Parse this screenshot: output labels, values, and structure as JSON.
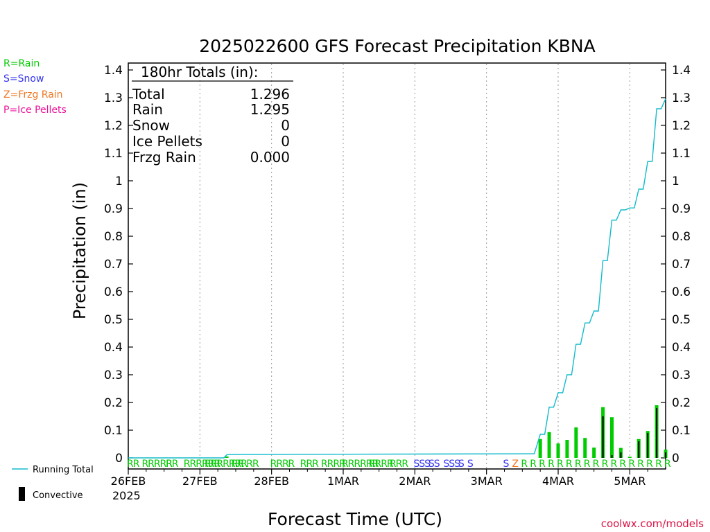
{
  "chart_data": {
    "type": "bar",
    "title": "2025022600 GFS Forecast Precipitation KBNA",
    "xlabel": "Forecast Time (UTC)",
    "ylabel": "Precipitation (in)",
    "credit": "coolwx.com/models",
    "ylim": [
      0,
      1.4
    ],
    "yticks": [
      "0",
      "0.1",
      "0.2",
      "0.3",
      "0.4",
      "0.5",
      "0.6",
      "0.7",
      "0.8",
      "0.9",
      "1",
      "1.1",
      "1.2",
      "1.3",
      "1.4"
    ],
    "x_range_hours": [
      0,
      180
    ],
    "x_ticks": [
      {
        "label": "26FEB",
        "hour": 0
      },
      {
        "label": "27FEB",
        "hour": 24
      },
      {
        "label": "28FEB",
        "hour": 48
      },
      {
        "label": "1MAR",
        "hour": 72
      },
      {
        "label": "2MAR",
        "hour": 96
      },
      {
        "label": "3MAR",
        "hour": 120
      },
      {
        "label": "4MAR",
        "hour": 144
      },
      {
        "label": "5MAR",
        "hour": 168
      }
    ],
    "x_year_label": "2025",
    "grid": "vertical dotted",
    "legend_types": [
      {
        "text": "R=Rain",
        "color": "#00cc00"
      },
      {
        "text": "S=Snow",
        "color": "#3333ee"
      },
      {
        "text": "Z=Frzg Rain",
        "color": "#ee7722"
      },
      {
        "text": "P=Ice Pellets",
        "color": "#ee1199"
      }
    ],
    "legend_running": "Running Total",
    "legend_convective": "Convective",
    "totals": {
      "header": "180hr Totals (in):",
      "rows": [
        {
          "label": "Total",
          "value": "1.296"
        },
        {
          "label": "Rain",
          "value": "1.295"
        },
        {
          "label": "Snow",
          "value": "0"
        },
        {
          "label": "Ice Pellets",
          "value": "0"
        },
        {
          "label": "Frzg Rain",
          "value": "0.000"
        }
      ]
    },
    "colors": {
      "running": "#11bbcc",
      "bar": "#00cc00",
      "convective": "#000000",
      "rain": "#00cc00",
      "snow": "#3333ee",
      "frzg": "#ee7722"
    },
    "bars": [
      {
        "hour": 33,
        "value": 0.005,
        "convective": 0
      },
      {
        "hour": 138,
        "value": 0.068,
        "convective": 0
      },
      {
        "hour": 141,
        "value": 0.093,
        "convective": 0
      },
      {
        "hour": 144,
        "value": 0.052,
        "convective": 0
      },
      {
        "hour": 147,
        "value": 0.065,
        "convective": 0
      },
      {
        "hour": 150,
        "value": 0.11,
        "convective": 0
      },
      {
        "hour": 153,
        "value": 0.072,
        "convective": 0
      },
      {
        "hour": 156,
        "value": 0.037,
        "convective": 0
      },
      {
        "hour": 159,
        "value": 0.183,
        "convective": 0.15
      },
      {
        "hour": 162,
        "value": 0.147,
        "convective": 0.01
      },
      {
        "hour": 165,
        "value": 0.036,
        "convective": 0.02
      },
      {
        "hour": 168,
        "value": 0.004,
        "convective": 0
      },
      {
        "hour": 171,
        "value": 0.068,
        "convective": 0.06
      },
      {
        "hour": 174,
        "value": 0.097,
        "convective": 0.09
      },
      {
        "hour": 177,
        "value": 0.19,
        "convective": 0.18
      },
      {
        "hour": 180,
        "value": 0.03,
        "convective": 0.02
      }
    ],
    "running_total": [
      {
        "hour": 0,
        "value": 0.0
      },
      {
        "hour": 32,
        "value": 0.0
      },
      {
        "hour": 33,
        "value": 0.011
      },
      {
        "hour": 34,
        "value": 0.012
      },
      {
        "hour": 136,
        "value": 0.015
      },
      {
        "hour": 138,
        "value": 0.085
      },
      {
        "hour": 139.5,
        "value": 0.085
      },
      {
        "hour": 141,
        "value": 0.183
      },
      {
        "hour": 142.5,
        "value": 0.183
      },
      {
        "hour": 144,
        "value": 0.235
      },
      {
        "hour": 145.5,
        "value": 0.235
      },
      {
        "hour": 147,
        "value": 0.3
      },
      {
        "hour": 148.5,
        "value": 0.3
      },
      {
        "hour": 150,
        "value": 0.41
      },
      {
        "hour": 151.5,
        "value": 0.41
      },
      {
        "hour": 153,
        "value": 0.487
      },
      {
        "hour": 154.5,
        "value": 0.487
      },
      {
        "hour": 156,
        "value": 0.53
      },
      {
        "hour": 157.5,
        "value": 0.53
      },
      {
        "hour": 159,
        "value": 0.712
      },
      {
        "hour": 160.5,
        "value": 0.712
      },
      {
        "hour": 162,
        "value": 0.858
      },
      {
        "hour": 163.5,
        "value": 0.858
      },
      {
        "hour": 165,
        "value": 0.895
      },
      {
        "hour": 166.5,
        "value": 0.895
      },
      {
        "hour": 168,
        "value": 0.902
      },
      {
        "hour": 169.5,
        "value": 0.902
      },
      {
        "hour": 171,
        "value": 0.97
      },
      {
        "hour": 172.5,
        "value": 0.97
      },
      {
        "hour": 174,
        "value": 1.07
      },
      {
        "hour": 175.5,
        "value": 1.07
      },
      {
        "hour": 177,
        "value": 1.26
      },
      {
        "hour": 178.5,
        "value": 1.26
      },
      {
        "hour": 180,
        "value": 1.296
      }
    ],
    "ptype_marks": [
      {
        "hour": 0,
        "text": "RR",
        "kind": "rain"
      },
      {
        "hour": 5,
        "text": "R",
        "kind": "rain"
      },
      {
        "hour": 7,
        "text": "RRRR",
        "kind": "rain"
      },
      {
        "hour": 13,
        "text": "RR",
        "kind": "rain"
      },
      {
        "hour": 19,
        "text": "RRRRRR",
        "kind": "rain"
      },
      {
        "hour": 26,
        "text": "RRRRRRR",
        "kind": "rain"
      },
      {
        "hour": 35,
        "text": "RR",
        "kind": "rain"
      },
      {
        "hour": 40,
        "text": "RR",
        "kind": "rain"
      },
      {
        "hour": 48,
        "text": "RRR",
        "kind": "rain"
      },
      {
        "hour": 54,
        "text": "R",
        "kind": "rain"
      },
      {
        "hour": 58,
        "text": "RRR",
        "kind": "rain"
      },
      {
        "hour": 65,
        "text": "RRRR",
        "kind": "rain"
      },
      {
        "hour": 72,
        "text": "RRRRRR",
        "kind": "rain"
      },
      {
        "hour": 81,
        "text": "RRRR",
        "kind": "rain"
      },
      {
        "hour": 88,
        "text": "RRR",
        "kind": "rain"
      },
      {
        "hour": 96,
        "text": "SSS",
        "kind": "snow"
      },
      {
        "hour": 101,
        "text": "SS",
        "kind": "snow"
      },
      {
        "hour": 106,
        "text": "SSS",
        "kind": "snow"
      },
      {
        "hour": 111,
        "text": "S",
        "kind": "snow"
      },
      {
        "hour": 114,
        "text": "S",
        "kind": "snow"
      },
      {
        "hour": 126,
        "text": "S",
        "kind": "snow"
      },
      {
        "hour": 129,
        "text": "Z",
        "kind": "frzg"
      },
      {
        "hour": 132,
        "text": "R",
        "kind": "rain"
      },
      {
        "hour": 135,
        "text": "R",
        "kind": "rain"
      },
      {
        "hour": 138,
        "text": "R",
        "kind": "rain"
      },
      {
        "hour": 141,
        "text": "R",
        "kind": "rain"
      },
      {
        "hour": 144,
        "text": "R",
        "kind": "rain"
      },
      {
        "hour": 147,
        "text": "R",
        "kind": "rain"
      },
      {
        "hour": 150,
        "text": "R",
        "kind": "rain"
      },
      {
        "hour": 153,
        "text": "R",
        "kind": "rain"
      },
      {
        "hour": 156,
        "text": "R",
        "kind": "rain"
      },
      {
        "hour": 159,
        "text": "R",
        "kind": "rain"
      },
      {
        "hour": 162,
        "text": "R",
        "kind": "rain"
      },
      {
        "hour": 165,
        "text": "R",
        "kind": "rain"
      },
      {
        "hour": 168,
        "text": "R",
        "kind": "rain"
      },
      {
        "hour": 171,
        "text": "R",
        "kind": "rain"
      },
      {
        "hour": 174,
        "text": "R",
        "kind": "rain"
      },
      {
        "hour": 177,
        "text": "R",
        "kind": "rain"
      },
      {
        "hour": 180,
        "text": "R",
        "kind": "rain"
      }
    ]
  }
}
